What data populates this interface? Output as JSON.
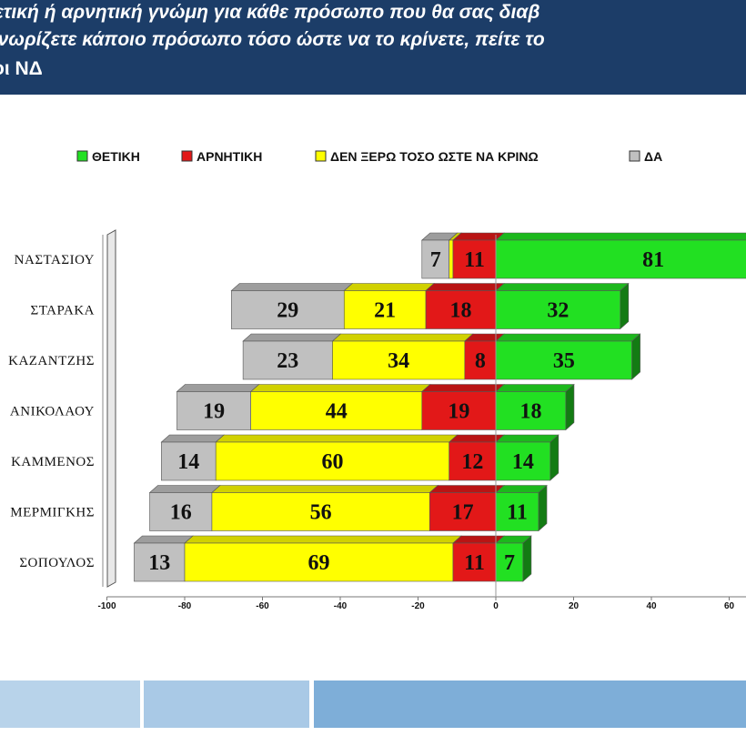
{
  "header": {
    "line1": "θετική ή αρνητική γνώμη για κάθε πρόσωπο που θα σας διαβ",
    "line2": "γνωρίζετε κάποιο πρόσωπο τόσο ώστε να το κρίνετε, πείτε το",
    "line3": "οι ΝΔ"
  },
  "colors": {
    "header_bg": "#1c3d68",
    "positive": "#22e022",
    "negative": "#e21818",
    "dont_know": "#ffff00",
    "na": "#c0c0c0"
  },
  "chart_data": {
    "type": "bar",
    "orientation": "horizontal-diverging-stacked",
    "title": "",
    "legend": {
      "placement": "top",
      "entries": [
        "ΘΕΤΙΚΗ",
        "ΑΡΝΗΤΙΚΗ",
        "ΔΕΝ ΞΕΡΩ ΤΟΣΟ ΩΣΤΕ ΝΑ ΚΡΙΝΩ",
        "ΔΑ"
      ]
    },
    "categories": [
      "ΝΑΣΤΑΣΙΟΥ",
      "ΣΤΑΡΑΚΑ",
      "ΚΑΖΑΝΤΖΗΣ",
      "ΑΝΙΚΟΛΑΟΥ",
      "ΚΑΜΜΕΝΟΣ",
      "ΜΕΡΜΙΓΚΗΣ",
      "ΣΟΠΟΥΛΟΣ"
    ],
    "series": [
      {
        "name": "ΘΕΤΙΚΗ",
        "values": [
          81,
          32,
          35,
          18,
          14,
          11,
          7
        ]
      },
      {
        "name": "ΑΡΝΗΤΙΚΗ",
        "values": [
          11,
          18,
          8,
          19,
          12,
          17,
          11
        ]
      },
      {
        "name": "ΔΕΝ ΞΕΡΩ ΤΟΣΟ ΩΣΤΕ ΝΑ ΚΡΙΝΩ",
        "values": [
          1,
          21,
          34,
          44,
          60,
          56,
          69
        ]
      },
      {
        "name": "ΔΑ",
        "values": [
          7,
          29,
          23,
          19,
          14,
          16,
          13
        ]
      }
    ],
    "data_labels": [
      [
        "81",
        "11",
        "",
        "7"
      ],
      [
        "32",
        "18",
        "21",
        "29"
      ],
      [
        "35",
        "8",
        "34",
        "23"
      ],
      [
        "18",
        "19",
        "44",
        "19"
      ],
      [
        "14",
        "12",
        "60",
        "14"
      ],
      [
        "11",
        "17",
        "56",
        "16"
      ],
      [
        "7",
        "11",
        "69",
        "13"
      ]
    ],
    "x_ticks": [
      "-100",
      "-80",
      "-60",
      "-40",
      "-20",
      "0",
      "20",
      "40",
      "60"
    ],
    "xlim": [
      -100,
      65
    ],
    "grid": false
  }
}
